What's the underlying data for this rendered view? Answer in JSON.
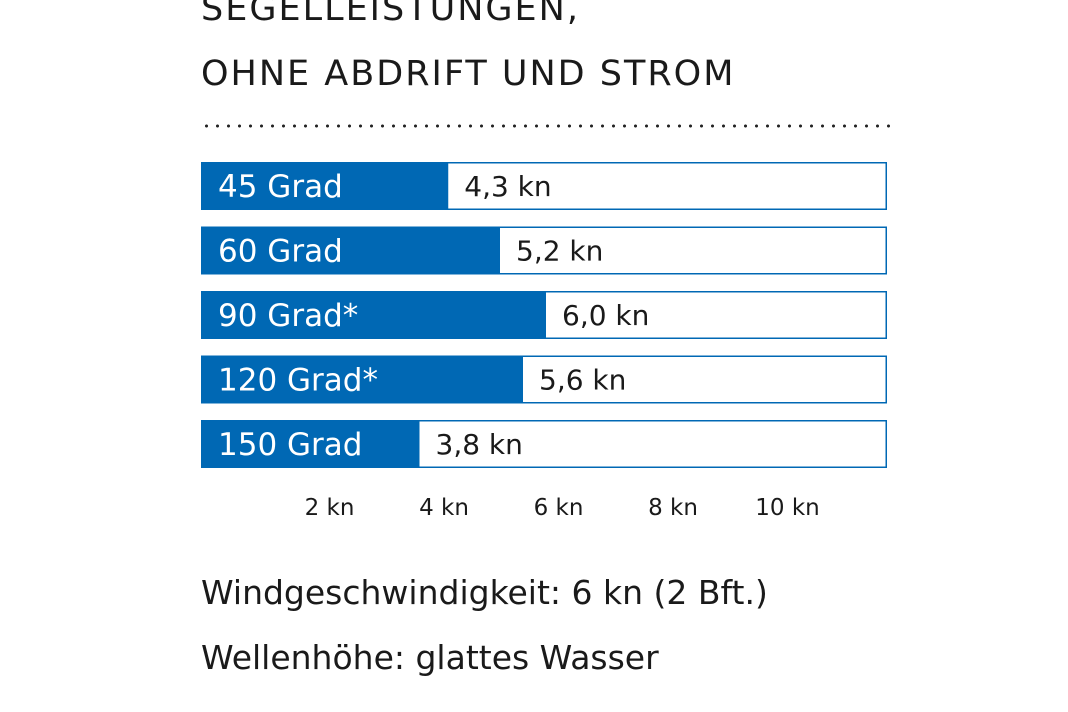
{
  "title_lines": [
    "SEGELLEISTUNGEN,",
    "OHNE ABDRIFT UND STROM"
  ],
  "notes": [
    "Windgeschwindigkeit: 6 kn (2 Bft.)",
    "Wellenhöhe: glattes Wasser"
  ],
  "chart_data": {
    "type": "bar",
    "orientation": "horizontal",
    "title": "SEGELLEISTUNGEN, OHNE ABDRIFT UND STROM",
    "categories": [
      "45 Grad",
      "60 Grad",
      "90 Grad*",
      "120 Grad*",
      "150 Grad"
    ],
    "values": [
      4.3,
      5.2,
      6.0,
      5.6,
      3.8
    ],
    "value_labels": [
      "4,3 kn",
      "5,2 kn",
      "6,0 kn",
      "5,6 kn",
      "3,8 kn"
    ],
    "x_ticks": [
      2,
      4,
      6,
      8,
      10
    ],
    "x_tick_labels": [
      "2 kn",
      "4 kn",
      "6 kn",
      "8 kn",
      "10 kn"
    ],
    "xlim": [
      0,
      12
    ],
    "grid": false,
    "colors": {
      "bar": "#0068b4",
      "track_border": "#0068b4",
      "bar_label": "#ffffff",
      "value_label": "#1a1a1a"
    }
  }
}
